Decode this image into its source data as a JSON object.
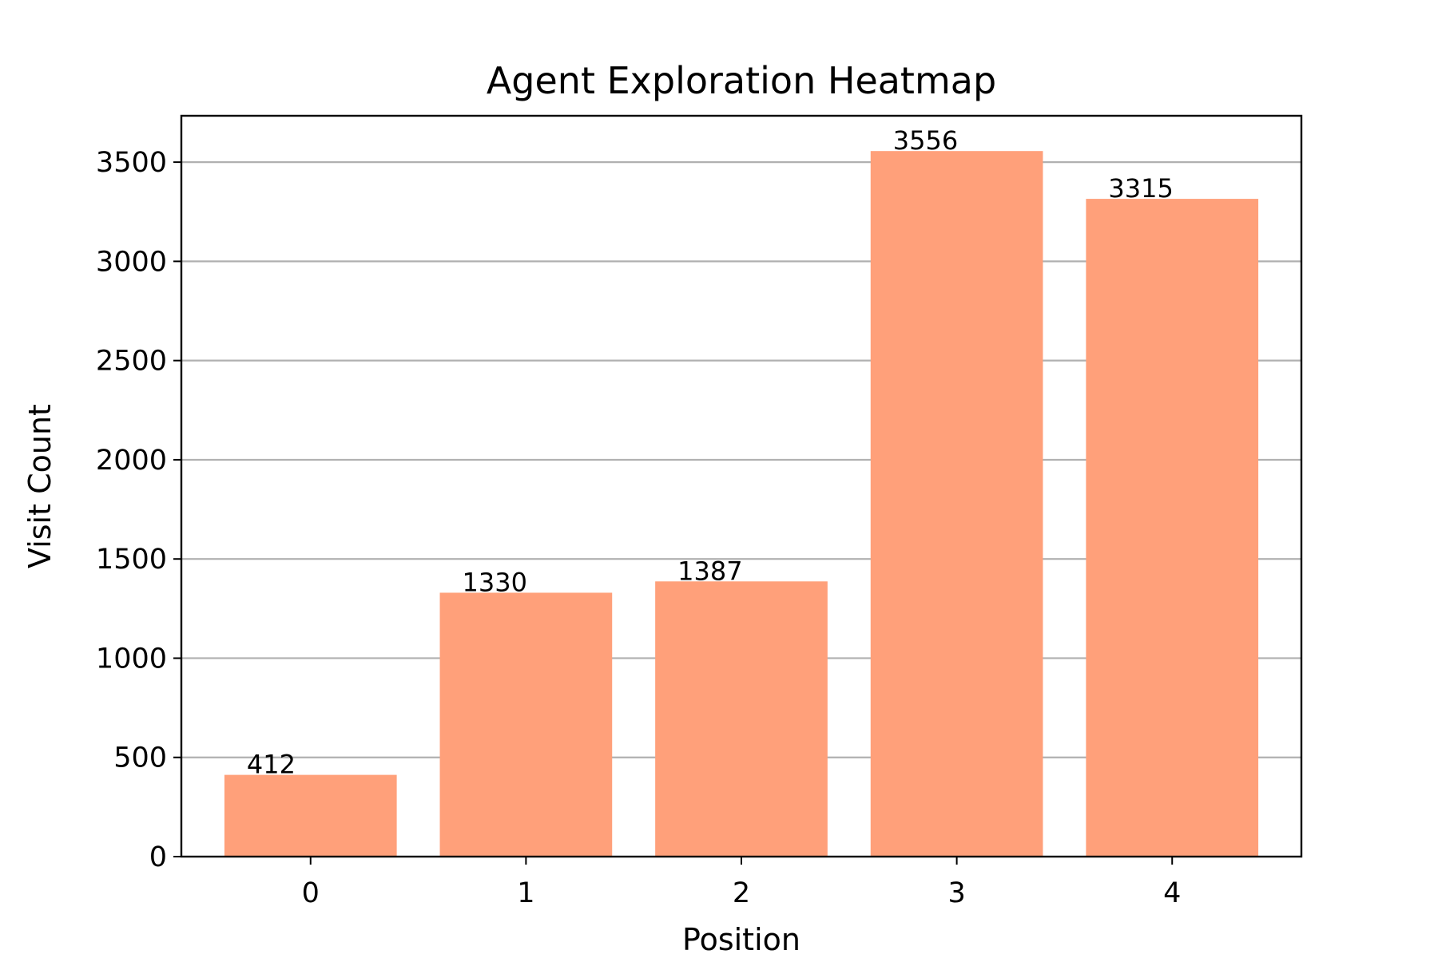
{
  "chart_data": {
    "type": "bar",
    "title": "Agent Exploration Heatmap",
    "xlabel": "Position",
    "ylabel": "Visit Count",
    "categories": [
      "0",
      "1",
      "2",
      "3",
      "4"
    ],
    "values": [
      412,
      1330,
      1387,
      3556,
      3315
    ],
    "data_labels": [
      "412",
      "1330",
      "1387",
      "3556",
      "3315"
    ],
    "ylim": [
      0,
      3733.8
    ],
    "yticks": [
      0,
      500,
      1000,
      1500,
      2000,
      2500,
      3000,
      3500
    ],
    "grid": "y",
    "bar_color": "#ffa07a",
    "legend": "none"
  }
}
